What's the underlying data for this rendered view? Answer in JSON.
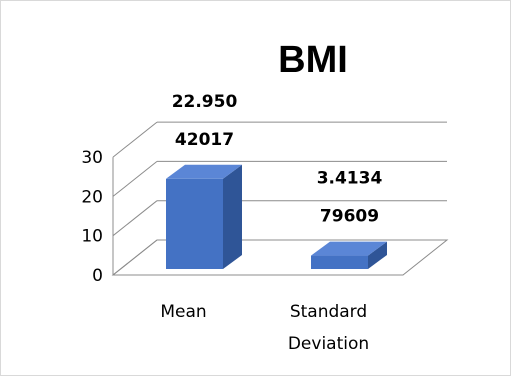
{
  "chart_data": {
    "type": "bar",
    "title": "BMI",
    "categories": [
      "Mean",
      "Standard Deviation"
    ],
    "category_label_lines": [
      [
        "Mean"
      ],
      [
        "Standard",
        "Deviation"
      ]
    ],
    "values": [
      22.95042017,
      3.413479609
    ],
    "data_labels": [
      [
        "22.950",
        "42017"
      ],
      [
        "3.4134",
        "79609"
      ]
    ],
    "ylim": [
      0,
      30
    ],
    "yticks": [
      "0",
      "10",
      "20",
      "30"
    ],
    "xlabel": "",
    "ylabel": "",
    "grid": true,
    "legend": "none",
    "style": "3d-column",
    "colors": {
      "bar_front": "#4472C4",
      "bar_side": "#2F5597",
      "bar_top": "#5B86D6",
      "grid": "#8c8c8c"
    }
  }
}
